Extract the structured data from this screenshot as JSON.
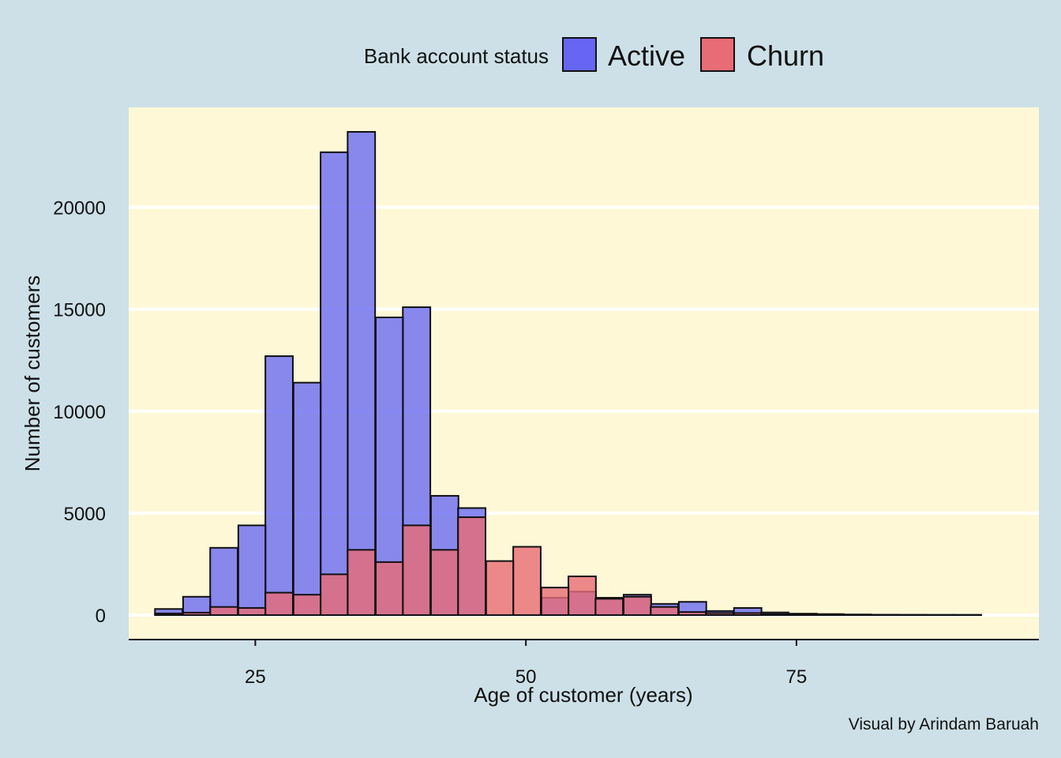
{
  "chart_data": {
    "type": "bar",
    "subtype": "overlaid-histogram",
    "legend": {
      "title": "Bank account status",
      "position": "top"
    },
    "xlabel": "Age of customer (years)",
    "ylabel": "Number of customers",
    "caption": "Visual by Arindam Baruah",
    "xlim": [
      13.3,
      97.4
    ],
    "ylim": [
      -1200,
      24900
    ],
    "bin_width": 2.54,
    "x_ticks": [
      25,
      50,
      75
    ],
    "y_ticks": [
      0,
      5000,
      10000,
      15000,
      20000
    ],
    "grid": "horizontal major",
    "bins": [
      17.0,
      19.6,
      22.1,
      24.7,
      27.2,
      29.8,
      32.3,
      34.8,
      37.4,
      39.9,
      42.5,
      45.0,
      47.6,
      50.1,
      52.7,
      55.2,
      57.7,
      60.3,
      62.8,
      65.4,
      67.9,
      70.5,
      73.0,
      75.6,
      78.1,
      80.6,
      83.2,
      85.7,
      88.3,
      90.8
    ],
    "series": [
      {
        "name": "Active",
        "color": "#6666f2",
        "values": [
          300,
          900,
          3300,
          4400,
          12700,
          11400,
          22700,
          23700,
          14600,
          15100,
          5850,
          5250,
          0,
          0,
          850,
          1150,
          850,
          1000,
          550,
          650,
          200,
          350,
          130,
          70,
          50,
          30,
          20,
          15,
          10,
          10
        ]
      },
      {
        "name": "Churn",
        "color": "#e86c75",
        "values": [
          80,
          120,
          400,
          350,
          1100,
          1000,
          2000,
          3200,
          2600,
          4400,
          3200,
          4800,
          2650,
          3350,
          1350,
          1900,
          800,
          900,
          400,
          150,
          100,
          100,
          50,
          30,
          20,
          20,
          15,
          10,
          10,
          10
        ]
      }
    ]
  }
}
